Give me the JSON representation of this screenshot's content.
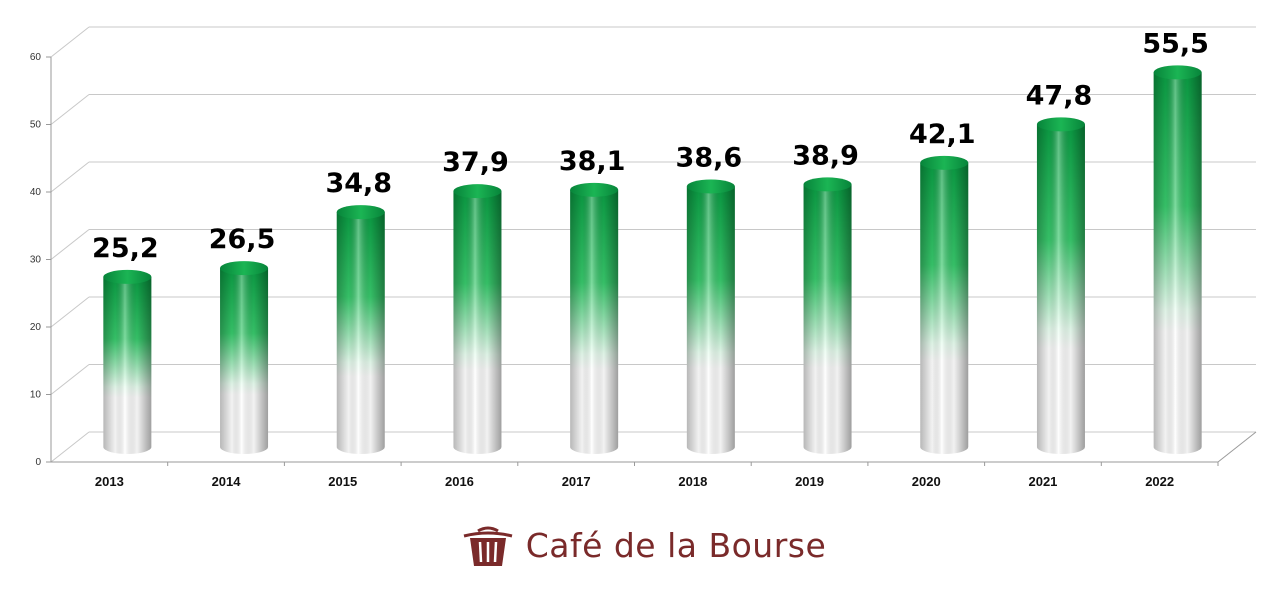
{
  "chart_data": {
    "type": "bar",
    "style": "3d-cylinder",
    "categories": [
      "2013",
      "2014",
      "2015",
      "2016",
      "2017",
      "2018",
      "2019",
      "2020",
      "2021",
      "2022"
    ],
    "values": [
      25.2,
      26.5,
      34.8,
      37.9,
      38.1,
      38.6,
      38.9,
      42.1,
      47.8,
      55.5
    ],
    "data_labels": [
      "25,2",
      "26,5",
      "34,8",
      "37,9",
      "38,1",
      "38,6",
      "38,9",
      "42,1",
      "47,8",
      "55,5"
    ],
    "y_ticks": [
      "0",
      "10",
      "20",
      "30",
      "40",
      "50",
      "60"
    ],
    "ylim": [
      0,
      60
    ],
    "grid": true,
    "legend": "none",
    "bar_color_top": "#0ea548",
    "bar_color_bottom": "#ffffff"
  },
  "brand": {
    "name": "Café de la Bourse",
    "logo_icon": "wastebasket-icon",
    "color": "#7a2a2a"
  }
}
